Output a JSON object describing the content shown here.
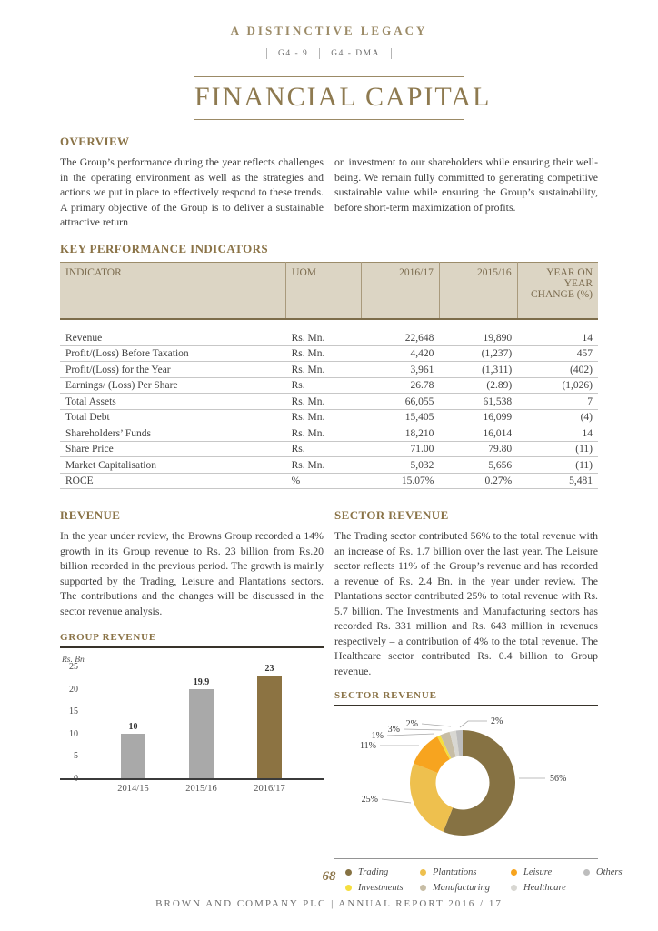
{
  "page": {
    "kicker": "A DISTINCTIVE LEGACY",
    "badges": [
      "G4 - 9",
      "G4 - DMA"
    ],
    "title": "FINANCIAL CAPITAL",
    "page_number": "68",
    "footer": "BROWN AND COMPANY PLC  |  ANNUAL REPORT 2016 / 17"
  },
  "colors": {
    "accent_gold": "#8a7347",
    "title_gold": "#8e7a50",
    "table_header_bg": "#dcd5c4",
    "bar_gray": "#a9a9a9",
    "bar_gold": "#8c7342"
  },
  "overview": {
    "heading": "OVERVIEW",
    "col1": "The Group’s performance during the year reflects challenges in the operating environment as well as the strategies and actions we put in place to effectively respond to these trends. A primary objective of the Group is to deliver a sustainable attractive return",
    "col2": "on investment to our shareholders while ensuring their well-being. We remain fully committed to generating competitive sustainable value while ensuring the Group’s sustainability, before short-term maximization of profits."
  },
  "kpi": {
    "heading": "KEY PERFORMANCE INDICATORS",
    "columns": [
      "INDICATOR",
      "UOM",
      "2016/17",
      "2015/16",
      "YEAR ON YEAR CHANGE (%)"
    ],
    "rows": [
      [
        "Revenue",
        "Rs. Mn.",
        "22,648",
        "19,890",
        "14"
      ],
      [
        "Profit/(Loss) Before Taxation",
        "Rs. Mn.",
        "4,420",
        "(1,237)",
        "457"
      ],
      [
        "Profit/(Loss) for the Year",
        "Rs. Mn.",
        "3,961",
        "(1,311)",
        "(402)"
      ],
      [
        "Earnings/ (Loss) Per Share",
        "Rs.",
        "26.78",
        "(2.89)",
        "(1,026)"
      ],
      [
        "Total Assets",
        "Rs. Mn.",
        "66,055",
        "61,538",
        "7"
      ],
      [
        "Total Debt",
        "Rs. Mn.",
        "15,405",
        "16,099",
        "(4)"
      ],
      [
        "Shareholders’ Funds",
        "Rs. Mn.",
        "18,210",
        "16,014",
        "14"
      ],
      [
        "Share Price",
        "Rs.",
        "71.00",
        "79.80",
        "(11)"
      ],
      [
        "Market Capitalisation",
        "Rs. Mn.",
        "5,032",
        "5,656",
        "(11)"
      ],
      [
        "ROCE",
        "%",
        "15.07%",
        "0.27%",
        "5,481"
      ]
    ]
  },
  "revenue": {
    "heading": "REVENUE",
    "body": "In the year under review, the Browns Group recorded a 14% growth in its Group revenue to Rs. 23 billion  from Rs.20 billion recorded in the previous period. The growth is mainly supported by the Trading, Leisure and Plantations sectors. The contributions and the changes will be discussed in the sector revenue analysis."
  },
  "sector_revenue": {
    "heading": "SECTOR REVENUE",
    "body": "The Trading sector contributed 56% to the total revenue with an increase of Rs. 1.7 billion over the last year. The Leisure sector reflects 11% of the Group’s revenue and has recorded a revenue of Rs. 2.4 Bn. in the year under review.  The Plantations sector contributed 25% to total revenue with Rs. 5.7 billion. The Investments and Manufacturing sectors has recorded Rs. 331 million and Rs. 643 million in revenues respectively – a contribution of 4% to the total revenue. The Healthcare sector contributed Rs. 0.4 billion to Group revenue."
  },
  "chart_data": [
    {
      "type": "bar",
      "title": "GROUP REVENUE",
      "ylabel": "Rs. Bn",
      "categories": [
        "2014/15",
        "2015/16",
        "2016/17"
      ],
      "values": [
        10,
        19.9,
        23
      ],
      "bar_colors": [
        "#a9a9a9",
        "#a9a9a9",
        "#8c7342"
      ],
      "ylim": [
        0,
        25
      ],
      "yticks": [
        25,
        20,
        15,
        10,
        5,
        0
      ],
      "grid": false
    },
    {
      "type": "donut",
      "title": "SECTOR REVENUE",
      "segments": [
        {
          "label": "Trading",
          "value": 56,
          "color": "#867243"
        },
        {
          "label": "Plantations",
          "value": 25,
          "color": "#eec04e"
        },
        {
          "label": "Leisure",
          "value": 11,
          "color": "#f7a41f"
        },
        {
          "label": "Investments",
          "value": 1,
          "color": "#f5de3e"
        },
        {
          "label": "Manufacturing",
          "value": 3,
          "color": "#c7bda5"
        },
        {
          "label": "Healthcare",
          "value": 2,
          "color": "#d8d7d2"
        },
        {
          "label": "Others",
          "value": 2,
          "color": "#bdbdbd"
        }
      ],
      "legend_order": [
        "Trading",
        "Plantations",
        "Leisure",
        "Others",
        "Investments",
        "Manufacturing",
        "Healthcare"
      ],
      "legend_position": "bottom"
    }
  ]
}
